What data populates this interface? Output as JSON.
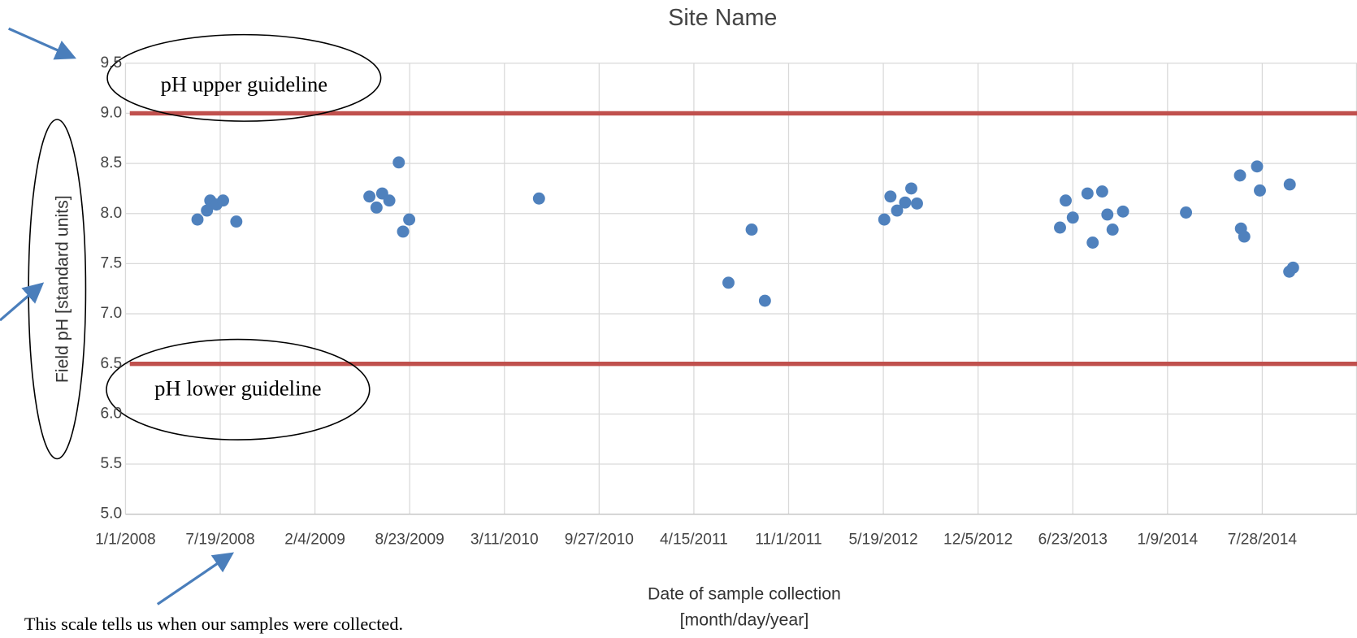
{
  "chart_data": {
    "type": "scatter",
    "title": "Site Name",
    "xlabel": [
      "Date of sample collection",
      "[month/day/year]"
    ],
    "ylabel": "Field pH [standard units]",
    "color": "#4f81bd",
    "grid": true,
    "xlim": [
      "2008-01-01",
      "2015-02-13"
    ],
    "xticks": [
      {
        "value": "2008-01-01",
        "label": "1/1/2008"
      },
      {
        "value": "2008-07-19",
        "label": "7/19/2008"
      },
      {
        "value": "2009-02-04",
        "label": "2/4/2009"
      },
      {
        "value": "2009-08-23",
        "label": "8/23/2009"
      },
      {
        "value": "2010-03-11",
        "label": "3/11/2010"
      },
      {
        "value": "2010-09-27",
        "label": "9/27/2010"
      },
      {
        "value": "2011-04-15",
        "label": "4/15/2011"
      },
      {
        "value": "2011-11-01",
        "label": "11/1/2011"
      },
      {
        "value": "2012-05-19",
        "label": "5/19/2012"
      },
      {
        "value": "2012-12-05",
        "label": "12/5/2012"
      },
      {
        "value": "2013-06-23",
        "label": "6/23/2013"
      },
      {
        "value": "2014-01-09",
        "label": "1/9/2014"
      },
      {
        "value": "2014-07-28",
        "label": "7/28/2014"
      }
    ],
    "ylim": [
      5,
      9.5
    ],
    "yticks": [
      {
        "value": 5,
        "label": "5.0"
      },
      5.5,
      {
        "value": 6,
        "label": "6.0"
      },
      6.5,
      {
        "value": 7,
        "label": "7.0"
      },
      7.5,
      {
        "value": 8,
        "label": "8.0"
      },
      8.5,
      {
        "value": 9,
        "label": "9.0"
      },
      9.5
    ],
    "x": [
      "2008-06-01",
      "2008-06-21",
      "2008-06-28",
      "2008-07-11",
      "2008-07-25",
      "2008-08-22",
      "2009-05-30",
      "2009-06-14",
      "2009-06-26",
      "2009-07-11",
      "2009-07-31",
      "2009-08-09",
      "2009-08-22",
      "2010-05-23",
      "2011-06-27",
      "2011-08-15",
      "2011-09-12",
      "2012-05-21",
      "2012-06-03",
      "2012-06-17",
      "2012-07-04",
      "2012-07-17",
      "2012-07-29",
      "2013-05-27",
      "2013-06-08",
      "2013-06-23",
      "2013-07-24",
      "2013-08-04",
      "2013-08-24",
      "2013-09-04",
      "2013-09-15",
      "2013-10-07",
      "2014-02-17",
      "2014-06-11",
      "2014-06-13",
      "2014-06-20",
      "2014-07-17",
      "2014-07-23",
      "2014-09-23",
      "2014-09-24",
      "2014-10-01"
    ],
    "values": [
      7.94,
      8.03,
      8.13,
      8.09,
      8.13,
      7.92,
      8.17,
      8.06,
      8.2,
      8.13,
      8.51,
      7.82,
      7.94,
      8.15,
      7.31,
      7.84,
      7.13,
      7.94,
      8.17,
      8.03,
      8.11,
      8.25,
      8.1,
      7.86,
      8.13,
      7.96,
      8.2,
      7.71,
      8.22,
      7.99,
      7.84,
      8.02,
      8.01,
      8.38,
      7.85,
      7.77,
      8.47,
      8.23,
      7.42,
      8.29,
      7.46
    ],
    "guidelines": [
      {
        "value": 9,
        "label": "pH upper guideline",
        "color": "#c0504d"
      },
      {
        "value": 6.5,
        "label": "pH lower guideline",
        "color": "#c0504d"
      }
    ],
    "annotation": "This scale tells us when our samples were collected."
  }
}
